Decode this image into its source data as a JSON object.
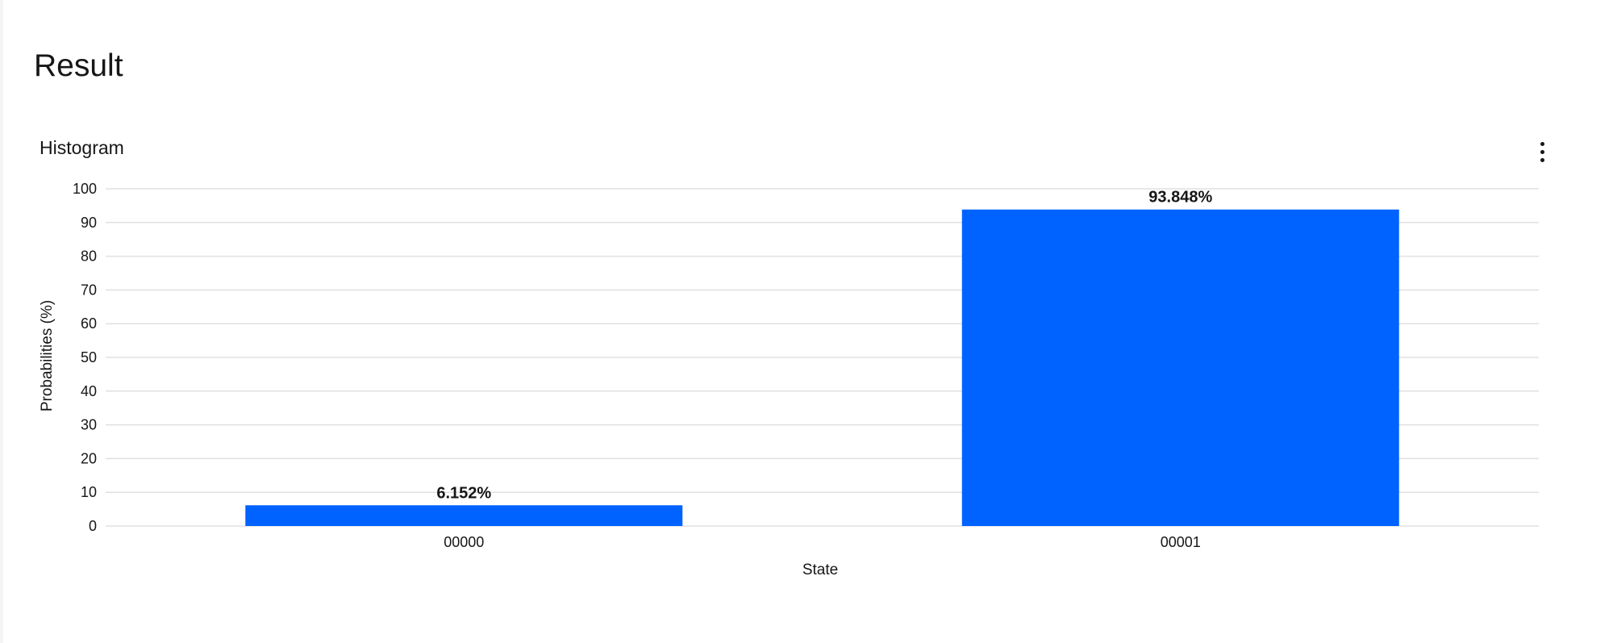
{
  "page": {
    "title": "Result"
  },
  "chart_data": {
    "type": "bar",
    "title": "Histogram",
    "xlabel": "State",
    "ylabel": "Probabilities (%)",
    "categories": [
      "00000",
      "00001"
    ],
    "values": [
      6.152,
      93.848
    ],
    "data_labels": [
      "6.152%",
      "93.848%"
    ],
    "ylim": [
      0,
      100
    ],
    "yticks": [
      0,
      10,
      20,
      30,
      40,
      50,
      60,
      70,
      80,
      90,
      100
    ],
    "grid": true,
    "bar_color": "#0062ff",
    "grid_color": "#e0e0e0"
  },
  "menu": {
    "icon": "overflow-menu-vertical-icon"
  }
}
